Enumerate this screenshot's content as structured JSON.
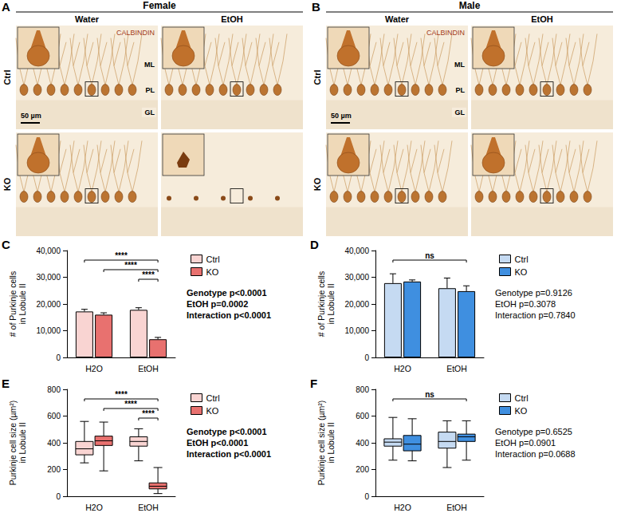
{
  "figure": {
    "image_panels": [
      {
        "letter": "A",
        "title": "Female",
        "columns": [
          "Water",
          "EtOH"
        ],
        "rows": [
          "Ctrl",
          "KO"
        ],
        "stain": "CALBINDIN",
        "layers": [
          "ML",
          "PL",
          "GL"
        ],
        "scale_bar": "50 µm"
      },
      {
        "letter": "B",
        "title": "Male",
        "columns": [
          "Water",
          "EtOH"
        ],
        "rows": [
          "Ctrl",
          "KO"
        ],
        "stain": "CALBINDIN",
        "layers": [
          "ML",
          "PL",
          "GL"
        ],
        "scale_bar": "50 µm"
      }
    ]
  },
  "chart_data": [
    {
      "letter": "C",
      "type": "bar",
      "categories": [
        "H2O",
        "EtOH"
      ],
      "ylabel": "# of Purkinje cells\nin Lobule II",
      "ylim": [
        0,
        40000
      ],
      "yticks": [
        0,
        10000,
        20000,
        30000,
        40000
      ],
      "grid": false,
      "legend": "right",
      "series": [
        {
          "name": "Ctrl",
          "color": "#f9d4d2",
          "values": [
            17200,
            17800
          ],
          "errors": [
            800,
            800
          ]
        },
        {
          "name": "KO",
          "color": "#e8716f",
          "values": [
            16000,
            6800
          ],
          "errors": [
            700,
            700
          ]
        }
      ],
      "significance": [
        {
          "from": [
            "H2O",
            "Ctrl"
          ],
          "to": [
            "EtOH",
            "KO"
          ],
          "label": "****"
        },
        {
          "from": [
            "H2O",
            "KO"
          ],
          "to": [
            "EtOH",
            "KO"
          ],
          "label": "****"
        },
        {
          "from": [
            "EtOH",
            "Ctrl"
          ],
          "to": [
            "EtOH",
            "KO"
          ],
          "label": "****"
        }
      ],
      "annotations": [
        "Genotype p<0.0001",
        "EtOH p=0.0002",
        "Interaction p<0.0001"
      ]
    },
    {
      "letter": "D",
      "type": "bar",
      "categories": [
        "H2O",
        "EtOH"
      ],
      "ylabel": "# of Purkinje cells\nin Lobule II",
      "ylim": [
        0,
        40000
      ],
      "yticks": [
        0,
        10000,
        20000,
        30000,
        40000
      ],
      "grid": false,
      "legend": "right",
      "series": [
        {
          "name": "Ctrl",
          "color": "#c5daf2",
          "values": [
            27800,
            25900
          ],
          "errors": [
            3500,
            3800
          ]
        },
        {
          "name": "KO",
          "color": "#3f8fe0",
          "values": [
            28400,
            24800
          ],
          "errors": [
            600,
            2000
          ]
        }
      ],
      "significance": [
        {
          "from": [
            "H2O",
            "Ctrl"
          ],
          "to": [
            "EtOH",
            "KO"
          ],
          "label": "ns"
        }
      ],
      "annotations": [
        "Genotype p=0.9126",
        "EtOH p=0.3078",
        "Interaction p=0.7840"
      ]
    },
    {
      "letter": "E",
      "type": "boxplot",
      "categories": [
        "H2O",
        "EtOH"
      ],
      "ylabel": "Purkinje cell size (µm²)\nin Lobule II",
      "ylim": [
        0,
        800
      ],
      "yticks": [
        0,
        200,
        400,
        600,
        800
      ],
      "grid": false,
      "legend": "right",
      "series": [
        {
          "name": "Ctrl",
          "color": "#f9d4d2",
          "values": [
            [
              250,
              310,
              355,
              410,
              560
            ],
            [
              265,
              375,
              410,
              445,
              505
            ]
          ]
        },
        {
          "name": "KO",
          "color": "#e8716f",
          "values": [
            [
              190,
              380,
              415,
              450,
              555
            ],
            [
              20,
              55,
              75,
              100,
              215
            ]
          ]
        }
      ],
      "significance": [
        {
          "from": [
            "H2O",
            "Ctrl"
          ],
          "to": [
            "EtOH",
            "KO"
          ],
          "label": "****"
        },
        {
          "from": [
            "H2O",
            "KO"
          ],
          "to": [
            "EtOH",
            "KO"
          ],
          "label": "****"
        },
        {
          "from": [
            "EtOH",
            "Ctrl"
          ],
          "to": [
            "EtOH",
            "KO"
          ],
          "label": "****"
        }
      ],
      "annotations": [
        "Genotype p<0.0001",
        "EtOH p<0.0001",
        "Interaction p<0.0001"
      ]
    },
    {
      "letter": "F",
      "type": "boxplot",
      "categories": [
        "H2O",
        "EtOH"
      ],
      "ylabel": "Purkinje cell size (µm²)\nin Lobule II",
      "ylim": [
        0,
        800
      ],
      "yticks": [
        0,
        200,
        400,
        600,
        800
      ],
      "grid": false,
      "legend": "right",
      "series": [
        {
          "name": "Ctrl",
          "color": "#c5daf2",
          "values": [
            [
              270,
              375,
              405,
              430,
              590
            ],
            [
              215,
              360,
              410,
              480,
              565
            ]
          ]
        },
        {
          "name": "KO",
          "color": "#3f8fe0",
          "values": [
            [
              265,
              340,
              390,
              455,
              580
            ],
            [
              270,
              410,
              445,
              465,
              565
            ]
          ]
        }
      ],
      "significance": [
        {
          "from": [
            "H2O",
            "Ctrl"
          ],
          "to": [
            "EtOH",
            "KO"
          ],
          "label": "ns"
        }
      ],
      "annotations": [
        "Genotype p=0.6525",
        "EtOH p=0.0901",
        "Interaction p=0.0688"
      ]
    }
  ]
}
